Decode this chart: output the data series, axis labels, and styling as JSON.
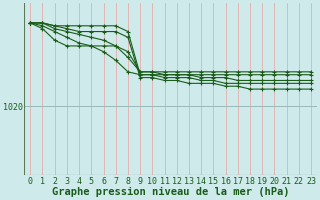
{
  "background_color": "#ceeaea",
  "plot_bg_color": "#ceeaea",
  "line_color": "#1a5c1a",
  "marker_color": "#1a5c1a",
  "grid_color_v": "#e8a0a0",
  "grid_color_h": "#9ab8b8",
  "xlabel": "Graphe pression niveau de la mer (hPa)",
  "xlabel_fontsize": 7.5,
  "tick_fontsize": 6,
  "ytick_label": "1020",
  "ytick_value": 1020,
  "xlim": [
    -0.5,
    23.5
  ],
  "ylim": [
    1008,
    1038
  ],
  "x": [
    0,
    1,
    2,
    3,
    4,
    5,
    6,
    7,
    8,
    9,
    10,
    11,
    12,
    13,
    14,
    15,
    16,
    17,
    18,
    19,
    20,
    21,
    22,
    23
  ],
  "series": [
    [
      1034.5,
      1034.5,
      1034,
      1034,
      1034,
      1034,
      1034,
      1034,
      1033,
      1025.5,
      1025.5,
      1025,
      1025,
      1025,
      1024.5,
      1024.5,
      1024,
      1024,
      1024,
      1024,
      1024,
      1024,
      1024,
      1024
    ],
    [
      1034.5,
      1034.5,
      1034,
      1033.5,
      1033,
      1033,
      1033,
      1033,
      1032,
      1025,
      1025,
      1024.5,
      1024.5,
      1024,
      1024,
      1024,
      1023.5,
      1023.5,
      1023,
      1023,
      1023,
      1023,
      1023,
      1023
    ],
    [
      1034.5,
      1033.5,
      1031.5,
      1030.5,
      1030.5,
      1030.5,
      1030.5,
      1030.5,
      1029.5,
      1026,
      1026,
      1025.5,
      1025.5,
      1025.5,
      1025,
      1025,
      1025,
      1024.5,
      1024.5,
      1024.5,
      1024.5,
      1024.5,
      1024.5,
      1024.5
    ],
    [
      1034.5,
      1034,
      1033,
      1032,
      1031,
      1030.5,
      1029.5,
      1028,
      1026,
      1025.5,
      1025.5,
      1025.5,
      1025.5,
      1025.5,
      1025.5,
      1025.5,
      1025.5,
      1025.5,
      1025.5,
      1025.5,
      1025.5,
      1025.5,
      1025.5,
      1025.5
    ],
    [
      1034.5,
      1034.5,
      1033.5,
      1033,
      1032.5,
      1032,
      1031.5,
      1030.5,
      1028.5,
      1026,
      1026,
      1026,
      1026,
      1026,
      1026,
      1026,
      1026,
      1026,
      1026,
      1026,
      1026,
      1026,
      1026,
      1026
    ]
  ]
}
